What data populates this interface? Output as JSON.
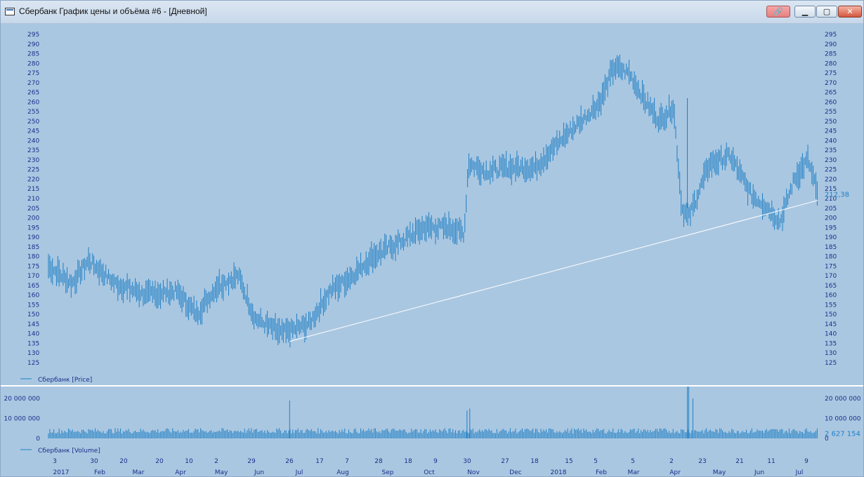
{
  "window": {
    "title": "Сбербанк График цены и объёма #6 - [Дневной]",
    "icons": [
      "chart-window-icon",
      "link-icon",
      "minimize-icon",
      "maximize-icon",
      "close-icon"
    ]
  },
  "colors": {
    "background": "#aac7e1",
    "series": "#1e7fc4",
    "text": "#1a2f8a",
    "trendline": "#ffffff",
    "last_value": "#1e7fc4"
  },
  "chart_data": [
    {
      "type": "ohlc-bar",
      "series_name": "Сбербанк [Price]",
      "ylim": [
        125,
        295
      ],
      "yticks": [
        125,
        130,
        135,
        140,
        145,
        150,
        155,
        160,
        165,
        170,
        175,
        180,
        185,
        190,
        195,
        200,
        205,
        210,
        215,
        220,
        225,
        230,
        235,
        240,
        245,
        250,
        255,
        260,
        265,
        270,
        275,
        280,
        285,
        290,
        295
      ],
      "last_value_label": "212,38",
      "last_value": 212.38,
      "x": [
        "2017-01-03",
        "2017-01-20",
        "2017-02-01",
        "2017-02-20",
        "2017-03-15",
        "2017-04-05",
        "2017-04-20",
        "2017-05-05",
        "2017-05-20",
        "2017-06-01",
        "2017-06-20",
        "2017-07-10",
        "2017-07-25",
        "2017-08-10",
        "2017-08-25",
        "2017-09-15",
        "2017-10-01",
        "2017-10-20",
        "2017-10-30",
        "2017-11-02",
        "2017-11-15",
        "2017-12-01",
        "2017-12-20",
        "2018-01-10",
        "2018-01-25",
        "2018-02-05",
        "2018-02-15",
        "2018-02-26",
        "2018-03-10",
        "2018-03-20",
        "2018-03-30",
        "2018-04-05",
        "2018-04-10",
        "2018-04-25",
        "2018-05-10",
        "2018-05-25",
        "2018-06-05",
        "2018-06-15",
        "2018-06-25",
        "2018-07-05",
        "2018-07-12"
      ],
      "close": [
        175,
        166,
        178,
        166,
        160,
        162,
        150,
        165,
        170,
        148,
        140,
        145,
        162,
        170,
        180,
        188,
        195,
        195,
        192,
        228,
        224,
        226,
        226,
        242,
        252,
        260,
        278,
        275,
        260,
        250,
        258,
        205,
        200,
        228,
        232,
        212,
        206,
        198,
        220,
        230,
        212.38
      ],
      "trendline": {
        "x": [
          "2017-06-26",
          "2018-07-12"
        ],
        "y": [
          136,
          209
        ]
      },
      "legend": "bottom-left",
      "grid": false
    },
    {
      "type": "bar",
      "series_name": "Сбербанк [Volume]",
      "ylim": [
        0,
        25000000
      ],
      "yticks": [
        0,
        10000000,
        20000000
      ],
      "ytick_labels": [
        "0",
        "10 000 000",
        "20 000 000"
      ],
      "last_value_label": "2 627 154",
      "last_value": 2627154,
      "typical": 4500000,
      "spikes": [
        {
          "x": "2017-06-26",
          "y": 19000000
        },
        {
          "x": "2017-11-01",
          "y": 14000000
        },
        {
          "x": "2017-11-03",
          "y": 15000000
        },
        {
          "x": "2018-04-09",
          "y": 26000000
        },
        {
          "x": "2018-04-10",
          "y": 26000000
        },
        {
          "x": "2018-04-13",
          "y": 20000000
        }
      ],
      "legend": "bottom-left"
    }
  ],
  "x_axis": {
    "day_labels": [
      "3",
      "30",
      "20",
      "20",
      "10",
      "2",
      "29",
      "26",
      "17",
      "7",
      "28",
      "18",
      "9",
      "30",
      "27",
      "18",
      "15",
      "5",
      "5",
      "2",
      "23",
      "21",
      "11",
      "9"
    ],
    "month_labels": [
      "2017",
      "Feb",
      "Mar",
      "Apr",
      "May",
      "Jun",
      "Jul",
      "Aug",
      "Sep",
      "Oct",
      "Nov",
      "Dec",
      "2018",
      "Feb",
      "Mar",
      "Apr",
      "May",
      "Jun",
      "Jul"
    ]
  }
}
